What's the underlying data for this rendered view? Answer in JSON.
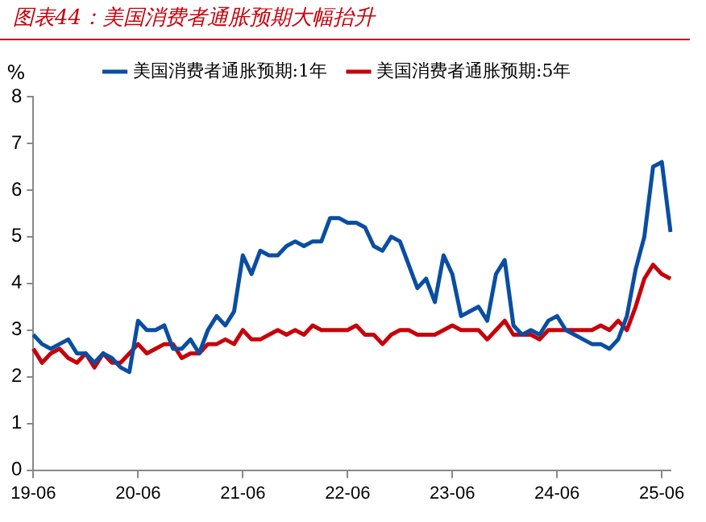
{
  "chart_data": {
    "type": "line",
    "title": "图表44：美国消费者通胀预期大幅抬升",
    "ylabel": "%",
    "categories": [
      "19-06",
      null,
      null,
      null,
      null,
      null,
      null,
      null,
      null,
      null,
      null,
      null,
      "20-06",
      null,
      null,
      null,
      null,
      null,
      null,
      null,
      null,
      null,
      null,
      null,
      "21-06",
      null,
      null,
      null,
      null,
      null,
      null,
      null,
      null,
      null,
      null,
      null,
      "22-06",
      null,
      null,
      null,
      null,
      null,
      null,
      null,
      null,
      null,
      null,
      null,
      "23-06",
      null,
      null,
      null,
      null,
      null,
      null,
      null,
      null,
      null,
      null,
      null,
      "24-06",
      null,
      null,
      null,
      null,
      null,
      null,
      null,
      null,
      null,
      null,
      null,
      "25-06",
      null
    ],
    "series": [
      {
        "name": "美国消费者通胀预期:1年",
        "color": "#0a4ea2",
        "values": [
          2.9,
          2.7,
          2.6,
          2.7,
          2.8,
          2.5,
          2.5,
          2.3,
          2.5,
          2.4,
          2.2,
          2.1,
          3.2,
          3.0,
          3.0,
          3.1,
          2.6,
          2.6,
          2.8,
          2.5,
          3.0,
          3.3,
          3.1,
          3.4,
          4.6,
          4.2,
          4.7,
          4.6,
          4.6,
          4.8,
          4.9,
          4.8,
          4.9,
          4.9,
          5.4,
          5.4,
          5.3,
          5.3,
          5.2,
          4.8,
          4.7,
          5.0,
          4.9,
          4.4,
          3.9,
          4.1,
          3.6,
          4.6,
          4.2,
          3.3,
          3.4,
          3.5,
          3.2,
          4.2,
          4.5,
          3.1,
          2.9,
          3.0,
          2.9,
          3.2,
          3.3,
          3.0,
          2.9,
          2.8,
          2.7,
          2.7,
          2.6,
          2.8,
          3.3,
          4.3,
          5.0,
          6.5,
          6.6,
          5.1
        ]
      },
      {
        "name": "美国消费者通胀预期:5年",
        "color": "#c8000a",
        "values": [
          2.6,
          2.3,
          2.5,
          2.6,
          2.4,
          2.3,
          2.5,
          2.2,
          2.5,
          2.3,
          2.3,
          2.5,
          2.7,
          2.5,
          2.6,
          2.7,
          2.7,
          2.4,
          2.5,
          2.5,
          2.7,
          2.7,
          2.8,
          2.7,
          3.0,
          2.8,
          2.8,
          2.9,
          3.0,
          2.9,
          3.0,
          2.9,
          3.1,
          3.0,
          3.0,
          3.0,
          3.0,
          3.1,
          2.9,
          2.9,
          2.7,
          2.9,
          3.0,
          3.0,
          2.9,
          2.9,
          2.9,
          3.0,
          3.1,
          3.0,
          3.0,
          3.0,
          2.8,
          3.0,
          3.2,
          2.9,
          2.9,
          2.9,
          2.8,
          3.0,
          3.0,
          3.0,
          3.0,
          3.0,
          3.0,
          3.1,
          3.0,
          3.2,
          3.0,
          3.5,
          4.1,
          4.4,
          4.2,
          4.1
        ]
      }
    ],
    "ylim": [
      0,
      8
    ],
    "yticks": [
      0,
      1,
      2,
      3,
      4,
      5,
      6,
      7,
      8
    ],
    "grid": false,
    "legend": "top",
    "marker": "none",
    "line_style": "solid"
  }
}
